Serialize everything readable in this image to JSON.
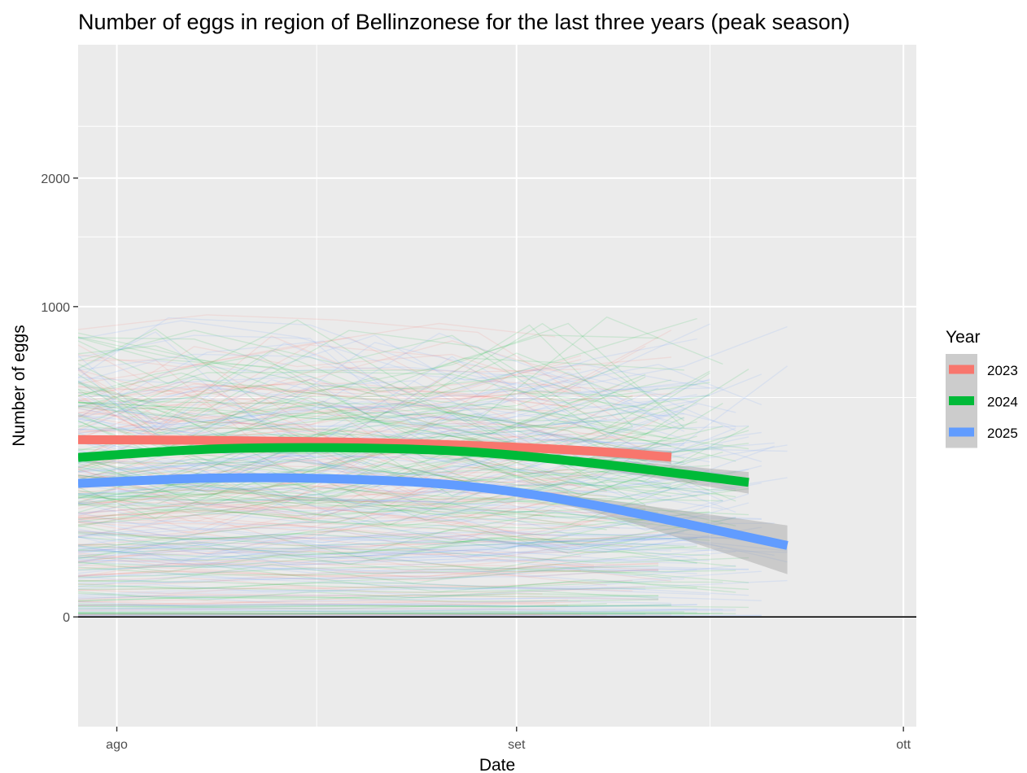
{
  "chart_data": {
    "type": "line",
    "title": "Number of eggs in region of Bellinzonese for the last three years (peak season)",
    "xlabel": "Date",
    "ylabel": "Number of eggs",
    "x_scale": "date",
    "xlim": [
      "2025-07-29",
      "2025-10-02"
    ],
    "ylim": [
      -125,
      3400
    ],
    "y_scale": "sqrt",
    "x_ticks": [
      {
        "date": "2025-08-01",
        "label": "ago"
      },
      {
        "date": "2025-09-01",
        "label": "set"
      },
      {
        "date": "2025-10-01",
        "label": "ott"
      }
    ],
    "y_ticks": [
      {
        "value": 0,
        "label": "0"
      },
      {
        "value": 1000,
        "label": "1000"
      },
      {
        "value": 2000,
        "label": "2000"
      }
    ],
    "grid": true,
    "legend": {
      "title": "Year",
      "position": "right"
    },
    "background_lines": "many thin semi-transparent per-trap lines for each year, shown faintly behind the smoothed trends",
    "series": [
      {
        "name": "2023",
        "color": "#F8766D",
        "x": [
          "2025-07-29",
          "2025-08-08",
          "2025-08-18",
          "2025-08-28",
          "2025-09-07",
          "2025-09-13"
        ],
        "values": [
          326,
          324,
          318,
          306,
          285,
          265
        ],
        "band_half_width": [
          12,
          10,
          10,
          11,
          16,
          22
        ]
      },
      {
        "name": "2024",
        "color": "#00BA38",
        "x": [
          "2025-07-29",
          "2025-08-08",
          "2025-08-18",
          "2025-08-28",
          "2025-09-07",
          "2025-09-19"
        ],
        "values": [
          264,
          292,
          297,
          284,
          245,
          188
        ],
        "band_half_width": [
          10,
          9,
          9,
          10,
          16,
          30
        ]
      },
      {
        "name": "2025",
        "color": "#619CFF",
        "x": [
          "2025-07-29",
          "2025-08-08",
          "2025-08-18",
          "2025-08-28",
          "2025-09-07",
          "2025-09-22"
        ],
        "values": [
          185,
          200,
          198,
          178,
          130,
          53
        ],
        "band_half_width": [
          8,
          7,
          7,
          9,
          16,
          34
        ]
      }
    ]
  }
}
